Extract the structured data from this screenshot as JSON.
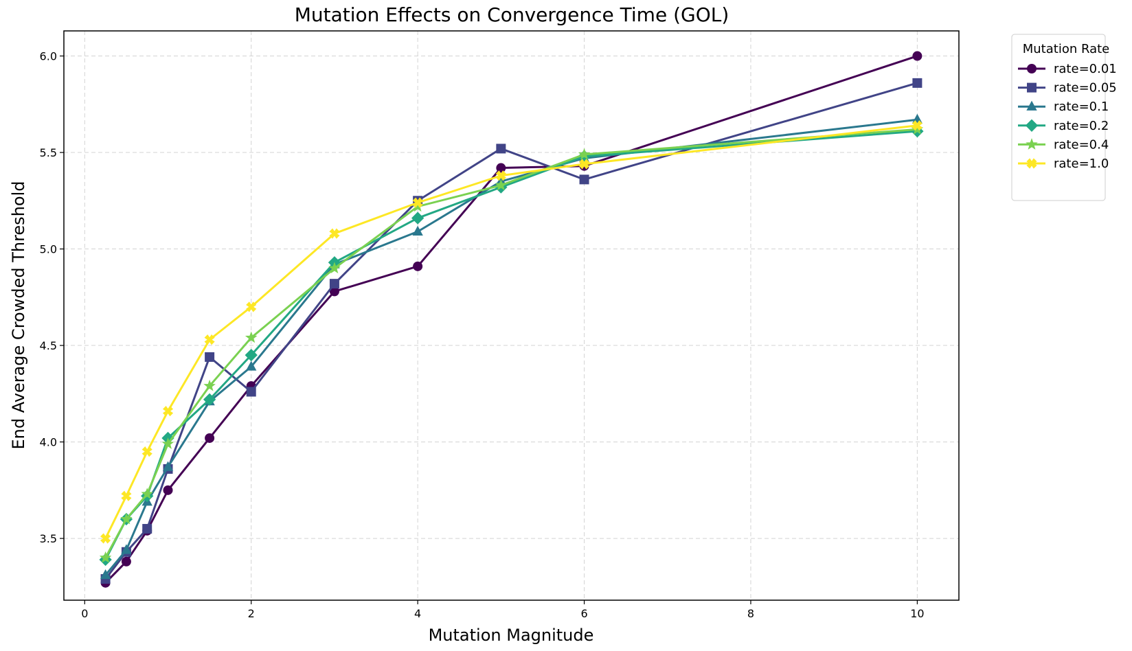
{
  "chart_data": {
    "type": "line",
    "title": "Mutation Effects on Convergence Time (GOL)",
    "xlabel": "Mutation Magnitude",
    "ylabel": "End Average Crowded Threshold",
    "xlim": [
      -0.25,
      10.5
    ],
    "ylim": [
      3.18,
      6.13
    ],
    "xticks": [
      0,
      2,
      4,
      6,
      8,
      10
    ],
    "yticks": [
      3.5,
      4.0,
      4.5,
      5.0,
      5.5,
      6.0
    ],
    "xtick_labels": [
      "0",
      "2",
      "4",
      "6",
      "8",
      "10"
    ],
    "ytick_labels": [
      "3.5",
      "4.0",
      "4.5",
      "5.0",
      "5.5",
      "6.0"
    ],
    "grid": true,
    "legend": {
      "title": "Mutation Rate",
      "placement": "outside-right-top"
    },
    "x": [
      0.25,
      0.5,
      0.75,
      1,
      1.5,
      2,
      3,
      4,
      5,
      6,
      10
    ],
    "series": [
      {
        "name": "rate=0.01",
        "color": "#440154",
        "marker": "circle",
        "values": [
          3.27,
          3.38,
          3.54,
          3.75,
          4.02,
          4.29,
          4.78,
          4.91,
          5.42,
          5.43,
          6.0
        ]
      },
      {
        "name": "rate=0.05",
        "color": "#414487",
        "marker": "square",
        "values": [
          3.29,
          3.43,
          3.55,
          3.86,
          4.44,
          4.26,
          4.82,
          5.25,
          5.52,
          5.36,
          5.86
        ]
      },
      {
        "name": "rate=0.1",
        "color": "#2a788e",
        "marker": "triangle",
        "values": [
          3.31,
          3.44,
          3.69,
          3.87,
          4.21,
          4.39,
          4.92,
          5.09,
          5.35,
          5.47,
          5.67
        ]
      },
      {
        "name": "rate=0.2",
        "color": "#22a884",
        "marker": "diamond",
        "values": [
          3.39,
          3.6,
          3.72,
          4.02,
          4.22,
          4.45,
          4.93,
          5.16,
          5.32,
          5.48,
          5.61
        ]
      },
      {
        "name": "rate=0.4",
        "color": "#7ad151",
        "marker": "star",
        "values": [
          3.4,
          3.6,
          3.73,
          3.99,
          4.29,
          4.54,
          4.9,
          5.22,
          5.33,
          5.49,
          5.62
        ]
      },
      {
        "name": "rate=1.0",
        "color": "#fde725",
        "marker": "x",
        "values": [
          3.5,
          3.72,
          3.95,
          4.16,
          4.53,
          4.7,
          5.08,
          5.24,
          5.38,
          5.44,
          5.64
        ]
      }
    ]
  }
}
